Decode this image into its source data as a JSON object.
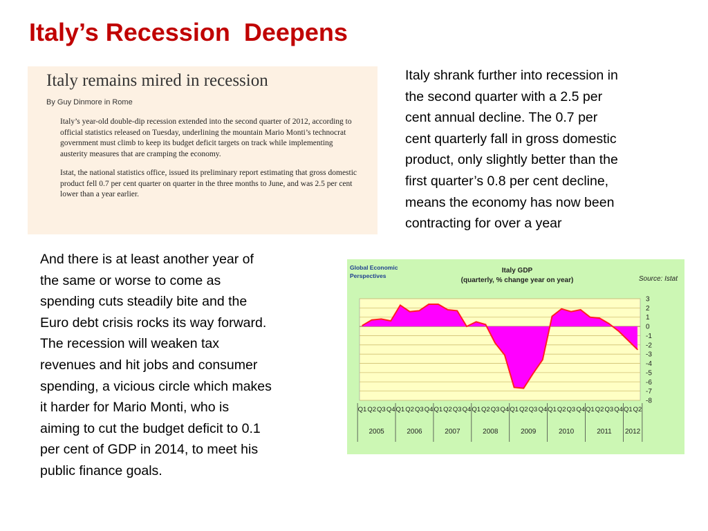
{
  "slide": {
    "title": "Italy’s Recession  Deepens"
  },
  "clipping": {
    "headline": "Italy remains mired in recession",
    "byline": "By Guy Dinmore in Rome",
    "paragraphs": [
      "Italy’s year-old double-dip recession extended into the second quarter of 2012, according to official statistics released on Tuesday, underlining the mountain Mario Monti’s technocrat government must climb to keep its budget deficit targets on track while implementing austerity measures that are cramping the economy.",
      "Istat, the national statistics office, issued its preliminary report estimating that gross domestic product fell 0.7 per cent quarter on quarter in the three months to June, and was 2.5 per cent lower than a year earlier."
    ]
  },
  "right_text": "Italy shrank further into recession in\nthe second quarter  with a 2.5 per\ncent annual  decline. The 0.7 per\ncent  quarterly fall in gross domestic\nproduct, only slightly better than the\nfirst quarter’s 0.8 per cent decline,\nmeans the economy has now been\ncontracting for over a  year",
  "left_text": "And there is at least another year of\nthe same or worse to come as\nspending cuts steadily bite and the\nEuro debt crisis rocks its way forward.\nThe recession  will weaken tax\nrevenues and hit jobs and consumer\nspending, a vicious circle which makes\nit harder for  Mario Monti, who is\naiming to cut the budget deficit to 0.1\nper cent of GDP in 2014, to meet his\npublic finance goals.",
  "chart_data": {
    "type": "area",
    "brand": [
      "Global Economic",
      "Perspectives"
    ],
    "title": "Italy GDP",
    "subtitle": "(quarterly, % change year on year)",
    "source": "Source: Istat",
    "xlabel": "",
    "ylabel": "",
    "ylim": [
      -8,
      3
    ],
    "yticks": [
      3,
      2,
      1,
      0,
      -1,
      -2,
      -3,
      -4,
      -5,
      -6,
      -7,
      -8
    ],
    "y_axis_side": "right",
    "grid": true,
    "quarter_labels": [
      "Q1",
      "Q2",
      "Q3",
      "Q4",
      "Q1",
      "Q2",
      "Q3",
      "Q4",
      "Q1",
      "Q2",
      "Q3",
      "Q4",
      "Q1",
      "Q2",
      "Q3",
      "Q4",
      "Q1",
      "Q2",
      "Q3",
      "Q4",
      "Q1",
      "Q2",
      "Q3",
      "Q4",
      "Q1",
      "Q2",
      "Q3",
      "Q4",
      "Q1",
      "Q2"
    ],
    "years": [
      "2005",
      "2006",
      "2007",
      "2008",
      "2009",
      "2010",
      "2011",
      "2012"
    ],
    "year_quarter_counts": [
      4,
      4,
      4,
      4,
      4,
      4,
      4,
      2
    ],
    "series": [
      {
        "values": [
          0.1,
          0.7,
          0.8,
          0.6,
          2.3,
          1.6,
          1.7,
          2.4,
          2.4,
          1.8,
          1.7,
          0.0,
          0.5,
          0.2,
          -1.8,
          -3.1,
          -6.6,
          -6.7,
          -5.1,
          -3.6,
          1.1,
          1.9,
          1.6,
          1.8,
          1.0,
          0.9,
          0.3,
          -0.5,
          -1.5,
          -2.5
        ],
        "color": "#ff00ff",
        "line_color": "#ff2020"
      }
    ],
    "colors": {
      "background": "#ccf7b4",
      "plot_area": "#ffffc4",
      "gridline": "#d0bf72",
      "fill": "#ff00ff",
      "line": "#ff2020"
    }
  }
}
